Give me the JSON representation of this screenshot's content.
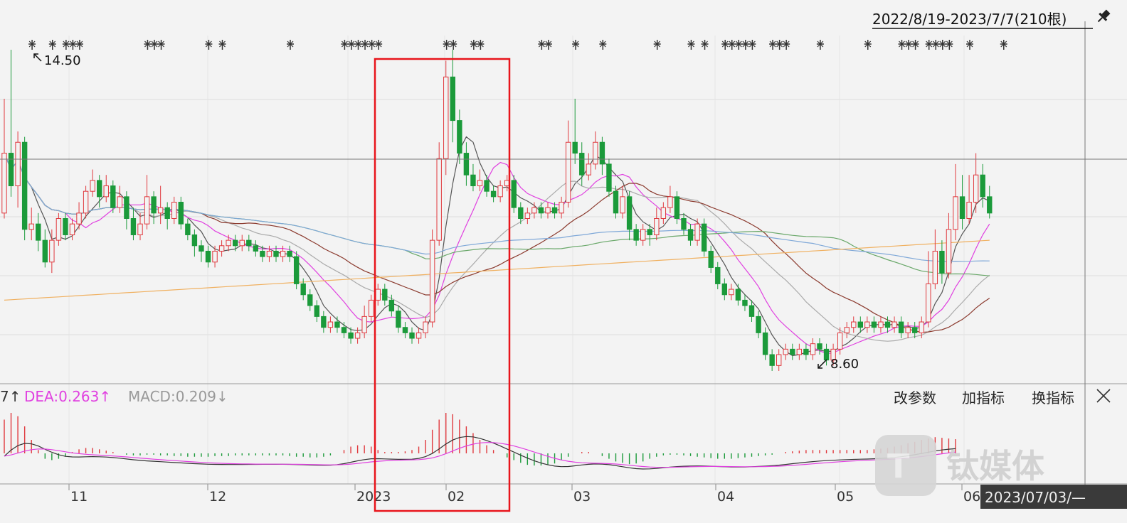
{
  "header": {
    "range": "2022/8/19-2023/7/7(210根)",
    "pin_icon": "pin-icon"
  },
  "indicator_bar": {
    "dif_fragment": "7↑",
    "dea": "DEA:0.263↑",
    "macd": "MACD:0.209↓",
    "buttons": [
      "改参数",
      "加指标",
      "换指标"
    ],
    "close_icon": "close-icon"
  },
  "annotations": {
    "high": "14.50",
    "low": "8.60"
  },
  "cursor_date": "2023/07/03/—",
  "watermark": "钛媒体",
  "colors": {
    "up": "#e0393e",
    "down": "#1b9a3a",
    "dea": "#e040e0",
    "dif": "#333333",
    "highlight": "#e8141b",
    "ma5": "#555555",
    "ma10": "#e040e0",
    "ma20": "#aaaaaa",
    "ma30": "#8b3a2e",
    "ma60": "#6aa86a",
    "ma120": "#7fa8d8",
    "ma250": "#f0b060"
  },
  "chart_data": {
    "type": "candlestick",
    "x_ticks": [
      "11",
      "12",
      "2023",
      "02",
      "03",
      "04",
      "05",
      "06"
    ],
    "price_range": [
      8.4,
      15.0
    ],
    "labeled_extremes": [
      14.5,
      8.6
    ],
    "candles": [
      [
        11.5,
        12.6,
        13.6,
        11.4
      ],
      [
        12.6,
        12.0,
        14.5,
        11.8
      ],
      [
        12.0,
        12.8,
        13.0,
        11.6
      ],
      [
        12.8,
        11.2,
        12.9,
        11.0
      ],
      [
        11.2,
        11.3,
        11.6,
        11.0
      ],
      [
        11.3,
        11.0,
        11.5,
        10.8
      ],
      [
        11.0,
        10.6,
        11.2,
        10.5
      ],
      [
        10.6,
        11.0,
        11.2,
        10.4
      ],
      [
        11.0,
        11.4,
        11.5,
        10.9
      ],
      [
        11.4,
        11.1,
        11.5,
        11.0
      ],
      [
        11.1,
        11.3,
        11.4,
        11.0
      ],
      [
        11.3,
        11.5,
        11.7,
        11.2
      ],
      [
        11.5,
        11.9,
        12.0,
        11.4
      ],
      [
        11.9,
        12.1,
        12.3,
        11.8
      ],
      [
        12.1,
        11.8,
        12.2,
        11.6
      ],
      [
        11.8,
        12.0,
        12.2,
        11.7
      ],
      [
        12.0,
        11.6,
        12.1,
        11.5
      ],
      [
        11.6,
        11.8,
        12.0,
        11.5
      ],
      [
        11.8,
        11.4,
        11.9,
        11.2
      ],
      [
        11.4,
        11.1,
        11.6,
        11.0
      ],
      [
        11.1,
        11.3,
        11.5,
        11.0
      ],
      [
        11.3,
        11.8,
        12.2,
        11.2
      ],
      [
        11.8,
        11.5,
        11.9,
        11.3
      ],
      [
        11.5,
        11.6,
        12.0,
        11.3
      ],
      [
        11.6,
        11.4,
        11.7,
        11.2
      ],
      [
        11.4,
        11.7,
        11.8,
        11.3
      ],
      [
        11.7,
        11.3,
        11.8,
        11.2
      ],
      [
        11.3,
        11.1,
        11.4,
        11.0
      ],
      [
        11.1,
        10.9,
        11.2,
        10.7
      ],
      [
        10.9,
        10.8,
        11.0,
        10.6
      ],
      [
        10.8,
        10.6,
        10.9,
        10.5
      ],
      [
        10.6,
        10.8,
        10.9,
        10.5
      ],
      [
        10.8,
        10.9,
        11.0,
        10.7
      ],
      [
        10.9,
        11.0,
        11.1,
        10.8
      ],
      [
        11.0,
        10.9,
        11.1,
        10.8
      ],
      [
        10.9,
        11.0,
        11.1,
        10.8
      ],
      [
        11.0,
        10.9,
        11.1,
        10.8
      ],
      [
        10.9,
        10.8,
        11.0,
        10.7
      ],
      [
        10.8,
        10.7,
        10.9,
        10.6
      ],
      [
        10.7,
        10.8,
        10.9,
        10.6
      ],
      [
        10.8,
        10.7,
        10.9,
        10.6
      ],
      [
        10.7,
        10.8,
        10.9,
        10.6
      ],
      [
        10.8,
        10.7,
        10.9,
        10.6
      ],
      [
        10.7,
        10.2,
        10.8,
        10.1
      ],
      [
        10.2,
        10.0,
        10.3,
        9.9
      ],
      [
        10.0,
        9.8,
        10.1,
        9.7
      ],
      [
        9.8,
        9.6,
        9.9,
        9.5
      ],
      [
        9.6,
        9.4,
        9.7,
        9.3
      ],
      [
        9.4,
        9.5,
        9.6,
        9.3
      ],
      [
        9.5,
        9.4,
        9.6,
        9.3
      ],
      [
        9.4,
        9.3,
        9.5,
        9.2
      ],
      [
        9.3,
        9.2,
        9.4,
        9.1
      ],
      [
        9.2,
        9.3,
        9.4,
        9.1
      ],
      [
        9.3,
        9.6,
        9.8,
        9.2
      ],
      [
        9.6,
        9.9,
        10.0,
        9.5
      ],
      [
        9.9,
        10.1,
        10.2,
        9.8
      ],
      [
        10.1,
        9.9,
        10.2,
        9.8
      ],
      [
        9.9,
        9.7,
        10.0,
        9.6
      ],
      [
        9.7,
        9.4,
        9.8,
        9.3
      ],
      [
        9.4,
        9.3,
        9.5,
        9.2
      ],
      [
        9.3,
        9.2,
        9.4,
        9.1
      ],
      [
        9.2,
        9.3,
        9.4,
        9.1
      ],
      [
        9.3,
        9.5,
        9.6,
        9.2
      ],
      [
        9.5,
        11.0,
        11.2,
        9.4
      ],
      [
        11.0,
        12.5,
        12.8,
        10.9
      ],
      [
        12.5,
        14.0,
        14.3,
        12.2
      ],
      [
        14.0,
        13.2,
        14.5,
        12.8
      ],
      [
        13.2,
        12.6,
        13.4,
        12.4
      ],
      [
        12.6,
        12.2,
        12.8,
        12.0
      ],
      [
        12.2,
        12.0,
        12.4,
        11.9
      ],
      [
        12.0,
        12.1,
        12.3,
        11.9
      ],
      [
        12.1,
        11.9,
        12.2,
        11.8
      ],
      [
        11.9,
        11.8,
        12.0,
        11.7
      ],
      [
        11.8,
        12.0,
        12.1,
        11.7
      ],
      [
        12.0,
        12.1,
        12.2,
        11.9
      ],
      [
        12.1,
        11.6,
        12.2,
        11.5
      ],
      [
        11.6,
        11.4,
        11.7,
        11.3
      ],
      [
        11.4,
        11.5,
        11.6,
        11.3
      ],
      [
        11.5,
        11.6,
        11.7,
        11.4
      ],
      [
        11.6,
        11.5,
        11.7,
        11.4
      ],
      [
        11.5,
        11.6,
        11.7,
        11.4
      ],
      [
        11.6,
        11.5,
        11.7,
        11.4
      ],
      [
        11.5,
        11.7,
        11.8,
        11.4
      ],
      [
        11.7,
        12.8,
        13.2,
        11.6
      ],
      [
        12.8,
        12.6,
        13.6,
        12.4
      ],
      [
        12.6,
        12.2,
        12.8,
        12.0
      ],
      [
        12.2,
        12.4,
        12.6,
        12.1
      ],
      [
        12.4,
        12.8,
        13.0,
        12.3
      ],
      [
        12.8,
        12.4,
        12.9,
        12.2
      ],
      [
        12.4,
        11.9,
        12.5,
        11.8
      ],
      [
        11.9,
        11.5,
        12.0,
        11.4
      ],
      [
        11.5,
        11.8,
        12.0,
        11.4
      ],
      [
        11.8,
        11.2,
        11.9,
        11.0
      ],
      [
        11.2,
        11.0,
        11.3,
        10.9
      ],
      [
        11.0,
        11.2,
        11.3,
        10.9
      ],
      [
        11.2,
        11.1,
        11.3,
        10.9
      ],
      [
        11.1,
        11.4,
        11.6,
        11.0
      ],
      [
        11.4,
        11.6,
        11.7,
        11.3
      ],
      [
        11.6,
        11.8,
        12.0,
        11.5
      ],
      [
        11.8,
        11.4,
        11.9,
        11.3
      ],
      [
        11.4,
        11.2,
        11.5,
        11.1
      ],
      [
        11.2,
        11.0,
        11.3,
        10.9
      ],
      [
        11.0,
        11.3,
        11.4,
        10.9
      ],
      [
        11.3,
        10.8,
        11.4,
        10.7
      ],
      [
        10.8,
        10.5,
        10.9,
        10.4
      ],
      [
        10.5,
        10.2,
        10.6,
        10.1
      ],
      [
        10.2,
        10.0,
        10.3,
        9.9
      ],
      [
        10.0,
        10.1,
        10.2,
        9.9
      ],
      [
        10.1,
        9.9,
        10.2,
        9.8
      ],
      [
        9.9,
        9.8,
        10.0,
        9.7
      ],
      [
        9.8,
        9.6,
        9.9,
        9.5
      ],
      [
        9.6,
        9.3,
        9.7,
        9.2
      ],
      [
        9.3,
        8.9,
        9.4,
        8.8
      ],
      [
        8.9,
        8.7,
        9.0,
        8.6
      ],
      [
        8.7,
        8.9,
        9.0,
        8.6
      ],
      [
        8.9,
        9.0,
        9.1,
        8.8
      ],
      [
        9.0,
        8.9,
        9.1,
        8.8
      ],
      [
        8.9,
        9.0,
        9.1,
        8.8
      ],
      [
        9.0,
        8.9,
        9.1,
        8.8
      ],
      [
        8.9,
        9.1,
        9.2,
        8.8
      ],
      [
        9.1,
        9.0,
        9.2,
        8.9
      ],
      [
        9.0,
        8.8,
        9.1,
        8.7
      ],
      [
        8.8,
        9.0,
        9.1,
        8.7
      ],
      [
        9.0,
        9.3,
        9.4,
        8.9
      ],
      [
        9.3,
        9.4,
        9.5,
        9.2
      ],
      [
        9.4,
        9.5,
        9.6,
        9.3
      ],
      [
        9.5,
        9.4,
        9.6,
        9.3
      ],
      [
        9.4,
        9.5,
        9.6,
        9.3
      ],
      [
        9.5,
        9.4,
        9.6,
        9.3
      ],
      [
        9.4,
        9.5,
        9.6,
        9.3
      ],
      [
        9.5,
        9.4,
        9.6,
        9.3
      ],
      [
        9.4,
        9.5,
        9.6,
        9.3
      ],
      [
        9.5,
        9.3,
        9.6,
        9.2
      ],
      [
        9.3,
        9.4,
        9.5,
        9.2
      ],
      [
        9.4,
        9.3,
        9.5,
        9.2
      ],
      [
        9.3,
        9.5,
        9.6,
        9.2
      ],
      [
        9.5,
        10.2,
        10.8,
        9.4
      ],
      [
        10.2,
        10.8,
        11.2,
        10.1
      ],
      [
        10.8,
        10.4,
        11.0,
        10.2
      ],
      [
        10.4,
        11.2,
        11.5,
        10.3
      ],
      [
        11.2,
        11.8,
        12.4,
        11.0
      ],
      [
        11.8,
        11.4,
        12.2,
        11.2
      ],
      [
        11.4,
        11.7,
        12.2,
        11.3
      ],
      [
        11.7,
        12.2,
        12.6,
        11.5
      ],
      [
        12.2,
        11.8,
        12.4,
        11.6
      ],
      [
        11.8,
        11.5,
        12.0,
        11.4
      ]
    ],
    "macd": {
      "hist": [
        0.5,
        0.6,
        0.55,
        0.4,
        0.2,
        0.05,
        -0.08,
        -0.1,
        -0.08,
        -0.05,
        0.02,
        0.06,
        0.08,
        0.08,
        0.06,
        0.04,
        0.02,
        0.0,
        -0.02,
        -0.03,
        -0.03,
        -0.02,
        -0.02,
        -0.03,
        -0.03,
        -0.04,
        -0.04,
        -0.05,
        -0.05,
        -0.05,
        -0.05,
        -0.04,
        -0.04,
        -0.04,
        -0.03,
        -0.03,
        -0.03,
        -0.03,
        -0.03,
        -0.03,
        -0.03,
        -0.03,
        -0.04,
        -0.05,
        -0.05,
        -0.06,
        -0.06,
        -0.05,
        -0.03,
        0.0,
        0.05,
        0.1,
        0.12,
        0.12,
        0.1,
        0.05,
        0.02,
        0.02,
        0.02,
        0.03,
        0.05,
        0.1,
        0.2,
        0.35,
        0.5,
        0.6,
        0.58,
        0.5,
        0.4,
        0.3,
        0.2,
        0.12,
        0.05,
        0.0,
        -0.06,
        -0.1,
        -0.14,
        -0.17,
        -0.18,
        -0.18,
        -0.17,
        -0.15,
        -0.1,
        -0.05,
        0.0,
        0.02,
        0.02,
        0.0,
        -0.04,
        -0.08,
        -0.12,
        -0.14,
        -0.16,
        -0.15,
        -0.12,
        -0.08,
        -0.05,
        -0.03,
        -0.02,
        -0.02,
        -0.03,
        -0.04,
        -0.05,
        -0.06,
        -0.07,
        -0.08,
        -0.08,
        -0.08,
        -0.07,
        -0.06,
        -0.05,
        -0.04,
        -0.03,
        -0.02,
        0.0,
        0.02,
        0.03,
        0.04,
        0.05,
        0.05,
        0.05,
        0.05,
        0.05,
        0.05,
        0.05,
        0.05,
        0.05,
        0.05,
        0.06,
        0.07,
        0.08,
        0.1,
        0.12,
        0.15,
        0.17,
        0.2,
        0.22,
        0.24,
        0.23,
        0.22,
        0.21
      ]
    }
  }
}
